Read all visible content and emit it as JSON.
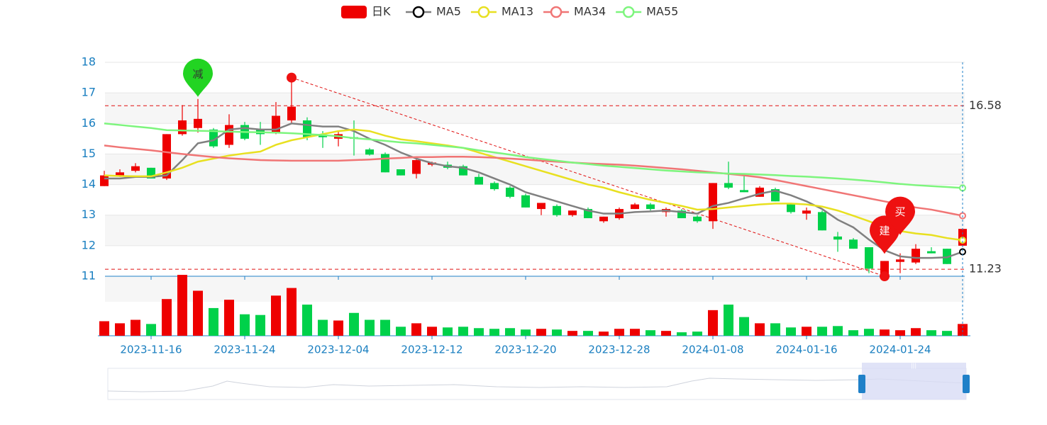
{
  "chart_data": {
    "type": "candlestick",
    "categories": [
      null,
      null,
      null,
      "2023-11-16",
      null,
      null,
      null,
      null,
      null,
      "2023-11-24",
      null,
      null,
      null,
      null,
      null,
      "2023-12-04",
      null,
      null,
      null,
      null,
      null,
      "2023-12-12",
      null,
      null,
      null,
      null,
      null,
      "2023-12-20",
      null,
      null,
      null,
      null,
      null,
      "2023-12-28",
      null,
      null,
      null,
      null,
      null,
      "2024-01-08",
      null,
      null,
      null,
      null,
      null,
      "2024-01-16",
      null,
      null,
      null,
      null,
      null,
      "2024-01-24",
      null,
      null,
      null,
      null
    ],
    "ylim": [
      11,
      18
    ],
    "yticks": [
      11,
      12,
      13,
      14,
      15,
      16,
      17,
      18
    ],
    "series": [
      {
        "name": "日K",
        "up_color": "#ee0000",
        "down_color": "#00d14a",
        "open": [
          13.95,
          14.3,
          14.45,
          14.55,
          14.2,
          15.65,
          15.85,
          15.8,
          15.3,
          15.95,
          15.8,
          15.7,
          16.1,
          16.1,
          15.6,
          15.5,
          15.55,
          15.15,
          15.0,
          14.5,
          14.35,
          14.65,
          14.65,
          14.6,
          14.25,
          14.05,
          13.9,
          13.65,
          13.2,
          13.3,
          13.0,
          13.2,
          12.8,
          12.9,
          13.2,
          13.35,
          13.1,
          13.15,
          12.95,
          12.8,
          14.05,
          13.82,
          13.6,
          13.85,
          13.35,
          13.05,
          13.1,
          12.3,
          12.2,
          11.95,
          11.0,
          11.47,
          11.45,
          11.82,
          11.9,
          12.0
        ],
        "close": [
          14.3,
          14.4,
          14.6,
          14.2,
          15.65,
          16.1,
          16.15,
          15.25,
          15.95,
          15.5,
          15.65,
          16.25,
          16.55,
          15.55,
          15.55,
          15.65,
          15.5,
          14.98,
          14.4,
          14.3,
          14.8,
          14.72,
          14.55,
          14.3,
          14.0,
          13.85,
          13.6,
          13.25,
          13.4,
          13.0,
          13.15,
          12.9,
          12.95,
          13.2,
          13.35,
          13.2,
          13.2,
          12.9,
          12.8,
          14.05,
          13.9,
          13.75,
          13.9,
          13.45,
          13.1,
          13.15,
          12.5,
          12.2,
          11.9,
          11.25,
          11.5,
          11.55,
          11.9,
          11.75,
          11.4,
          12.55
        ],
        "high": [
          14.45,
          14.5,
          14.7,
          14.55,
          15.65,
          16.6,
          16.8,
          15.85,
          16.3,
          16.05,
          16.05,
          16.7,
          17.5,
          16.2,
          15.75,
          15.75,
          16.1,
          15.2,
          15.05,
          14.5,
          14.85,
          14.75,
          14.75,
          14.65,
          14.35,
          14.1,
          13.95,
          13.7,
          13.4,
          13.35,
          13.15,
          13.25,
          12.95,
          13.25,
          13.4,
          13.4,
          13.25,
          13.2,
          13.0,
          14.05,
          14.75,
          14.3,
          13.95,
          13.9,
          13.4,
          13.25,
          13.15,
          12.45,
          12.25,
          11.95,
          11.5,
          11.75,
          12.05,
          11.95,
          11.9,
          12.55
        ],
        "low": [
          13.95,
          14.25,
          14.4,
          14.2,
          14.15,
          15.6,
          15.7,
          15.2,
          15.2,
          15.45,
          15.3,
          15.65,
          16.0,
          15.45,
          15.2,
          15.25,
          14.95,
          14.95,
          14.4,
          14.3,
          14.2,
          14.6,
          14.5,
          14.3,
          14.0,
          13.8,
          13.55,
          13.25,
          13.0,
          12.95,
          12.95,
          12.9,
          12.75,
          12.85,
          13.2,
          13.15,
          12.95,
          12.9,
          12.75,
          12.55,
          13.85,
          13.75,
          13.6,
          13.45,
          13.05,
          12.85,
          12.5,
          11.8,
          11.9,
          11.1,
          11.0,
          11.1,
          11.4,
          11.75,
          11.4,
          12.0
        ]
      },
      {
        "name": "MA5",
        "color": "#808080",
        "values": [
          14.2,
          14.2,
          14.25,
          14.25,
          14.3,
          14.8,
          15.35,
          15.45,
          15.8,
          15.85,
          15.8,
          15.8,
          16.0,
          15.95,
          15.9,
          15.9,
          15.75,
          15.5,
          15.3,
          15.05,
          14.85,
          14.7,
          14.6,
          14.55,
          14.4,
          14.2,
          14.0,
          13.75,
          13.6,
          13.45,
          13.3,
          13.15,
          13.05,
          13.05,
          13.1,
          13.12,
          13.15,
          13.1,
          13.05,
          13.3,
          13.4,
          13.55,
          13.7,
          13.8,
          13.65,
          13.45,
          13.2,
          12.85,
          12.6,
          12.2,
          11.85,
          11.65,
          11.6,
          11.6,
          11.62,
          11.8
        ]
      },
      {
        "name": "MA13",
        "color": "#e8e020",
        "values": [
          14.3,
          14.28,
          14.27,
          14.27,
          14.4,
          14.55,
          14.75,
          14.85,
          14.95,
          15.02,
          15.08,
          15.3,
          15.45,
          15.55,
          15.65,
          15.75,
          15.8,
          15.75,
          15.6,
          15.48,
          15.42,
          15.35,
          15.28,
          15.2,
          15.05,
          14.9,
          14.75,
          14.6,
          14.45,
          14.3,
          14.15,
          14.0,
          13.9,
          13.75,
          13.62,
          13.5,
          13.4,
          13.3,
          13.18,
          13.2,
          13.25,
          13.3,
          13.35,
          13.38,
          13.38,
          13.35,
          13.28,
          13.15,
          12.98,
          12.8,
          12.6,
          12.48,
          12.4,
          12.35,
          12.25,
          12.18
        ]
      },
      {
        "name": "MA34",
        "color": "#f07575",
        "values": [
          15.28,
          15.22,
          15.17,
          15.12,
          15.06,
          15.0,
          14.95,
          14.9,
          14.86,
          14.83,
          14.8,
          14.79,
          14.78,
          14.78,
          14.78,
          14.78,
          14.8,
          14.82,
          14.85,
          14.87,
          14.9,
          14.9,
          14.91,
          14.91,
          14.9,
          14.88,
          14.85,
          14.82,
          14.78,
          14.75,
          14.72,
          14.69,
          14.67,
          14.65,
          14.62,
          14.58,
          14.54,
          14.5,
          14.45,
          14.4,
          14.35,
          14.3,
          14.24,
          14.15,
          14.05,
          13.95,
          13.85,
          13.75,
          13.65,
          13.55,
          13.45,
          13.35,
          13.25,
          13.18,
          13.08,
          12.98
        ]
      },
      {
        "name": "MA55",
        "color": "#7df57d",
        "values": [
          16.0,
          15.95,
          15.9,
          15.85,
          15.78,
          15.77,
          15.76,
          15.75,
          15.73,
          15.72,
          15.71,
          15.7,
          15.68,
          15.65,
          15.62,
          15.58,
          15.52,
          15.48,
          15.43,
          15.38,
          15.35,
          15.3,
          15.25,
          15.2,
          15.12,
          15.05,
          14.98,
          14.9,
          14.84,
          14.78,
          14.72,
          14.67,
          14.62,
          14.58,
          14.54,
          14.5,
          14.46,
          14.43,
          14.4,
          14.38,
          14.36,
          14.35,
          14.33,
          14.31,
          14.28,
          14.26,
          14.23,
          14.2,
          14.16,
          14.12,
          14.07,
          14.02,
          13.98,
          13.95,
          13.92,
          13.89
        ]
      }
    ],
    "volume": [
      21,
      18,
      23,
      17,
      53,
      88,
      65,
      40,
      52,
      31,
      30,
      58,
      69,
      45,
      23,
      22,
      33,
      23,
      23,
      13,
      18,
      13,
      12,
      13,
      11,
      10,
      11,
      9,
      10,
      9,
      7,
      7,
      6,
      10,
      10,
      8,
      7,
      5,
      6,
      37,
      45,
      27,
      18,
      18,
      12,
      13,
      13,
      14,
      8,
      10,
      9,
      8,
      11,
      8,
      7,
      17
    ],
    "mark_lines": [
      16.58,
      11.23
    ],
    "annotations": [
      null,
      null,
      null,
      null,
      null,
      null,
      {
        "label": "减",
        "color": "#22d422"
      },
      null,
      null,
      null,
      null,
      null,
      null,
      null,
      null,
      null,
      null,
      null,
      null,
      null,
      null,
      null,
      null,
      null,
      null,
      null,
      null,
      null,
      null,
      null,
      null,
      null,
      null,
      null,
      null,
      null,
      null,
      null,
      null,
      null,
      null,
      null,
      null,
      null,
      null,
      null,
      null,
      null,
      null,
      null,
      {
        "label": "建",
        "color": "#ee1111"
      },
      {
        "label": "买",
        "color": "#ee1111"
      },
      null,
      null,
      null,
      null
    ]
  }
}
